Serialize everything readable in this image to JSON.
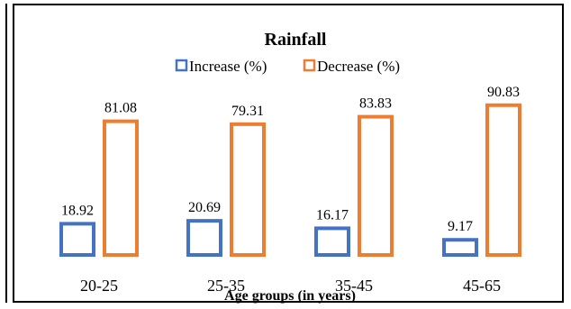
{
  "chart_data": {
    "type": "bar",
    "title": "Rainfall",
    "xlabel": "Age groups (in years)",
    "ylabel": "",
    "categories": [
      "20-25",
      "25-35",
      "35-45",
      "45-65"
    ],
    "series": [
      {
        "name": "Increase (%)",
        "values": [
          18.92,
          20.69,
          16.17,
          9.17
        ],
        "color": "#4472C4"
      },
      {
        "name": "Decrease (%)",
        "values": [
          81.08,
          79.31,
          83.83,
          90.83
        ],
        "color": "#ED7D31"
      }
    ],
    "value_labels": [
      [
        "18.92",
        "20.69",
        "16.17",
        "9.17"
      ],
      [
        "81.08",
        "79.31",
        "83.83",
        "90.83"
      ]
    ],
    "ylim": [
      0,
      100
    ],
    "grid": false,
    "legend_position": "top"
  }
}
